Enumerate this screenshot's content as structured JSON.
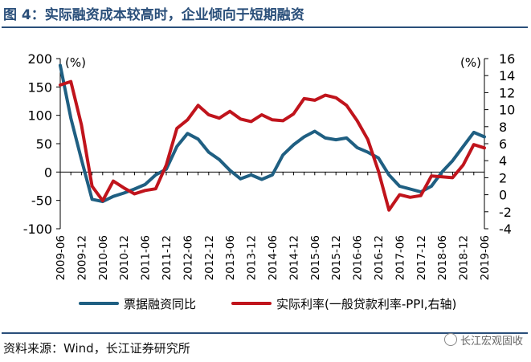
{
  "title": "图 4：实际融资成本较高时，企业倾向于短期融资",
  "source": "资料来源：Wind，长江证券研究所",
  "watermark": "长江宏观固收",
  "colors": {
    "title": "#2a4f7a",
    "series1": "#1f5f82",
    "series2": "#c0141c"
  },
  "chart_data": {
    "type": "line",
    "x": [
      "2009-06",
      "2009-09",
      "2009-12",
      "2010-03",
      "2010-06",
      "2010-09",
      "2010-12",
      "2011-03",
      "2011-06",
      "2011-09",
      "2011-12",
      "2012-03",
      "2012-06",
      "2012-09",
      "2012-12",
      "2013-03",
      "2013-06",
      "2013-09",
      "2013-12",
      "2014-03",
      "2014-06",
      "2014-09",
      "2014-12",
      "2015-03",
      "2015-06",
      "2015-09",
      "2015-12",
      "2016-03",
      "2016-06",
      "2016-09",
      "2016-12",
      "2017-03",
      "2017-06",
      "2017-09",
      "2017-12",
      "2018-03",
      "2018-06",
      "2018-09",
      "2018-12",
      "2019-03",
      "2019-06"
    ],
    "x_tick_labels": [
      "2009-06",
      "2009-12",
      "2010-06",
      "2010-12",
      "2011-06",
      "2011-12",
      "2012-06",
      "2012-12",
      "2013-06",
      "2013-12",
      "2014-06",
      "2014-12",
      "2015-06",
      "2015-12",
      "2016-06",
      "2016-12",
      "2017-06",
      "2017-12",
      "2018-06",
      "2018-12",
      "2019-06"
    ],
    "series": [
      {
        "name": "票据融资同比",
        "axis": "left",
        "values": [
          188,
          95,
          22,
          -48,
          -52,
          -43,
          -37,
          -30,
          -22,
          -5,
          5,
          45,
          68,
          58,
          35,
          22,
          3,
          -12,
          -5,
          -13,
          -5,
          30,
          48,
          62,
          72,
          60,
          57,
          60,
          43,
          35,
          25,
          -5,
          -25,
          -30,
          -35,
          -25,
          0,
          20,
          45,
          70,
          62
        ]
      },
      {
        "name": "实际利率(一般贷款利率-PPI,右轴)",
        "axis": "right",
        "values": [
          12.9,
          13.3,
          8.2,
          1.0,
          -0.7,
          1.6,
          0.8,
          0.1,
          0.5,
          0.7,
          3.5,
          7.8,
          8.8,
          10.5,
          9.4,
          9.0,
          9.8,
          8.9,
          8.6,
          9.4,
          8.8,
          8.7,
          9.5,
          11.3,
          11.1,
          11.7,
          11.4,
          10.5,
          8.7,
          6.5,
          2.8,
          -1.8,
          0.0,
          -0.3,
          -0.1,
          2.2,
          2.1,
          2.0,
          3.5,
          5.9,
          5.5
        ]
      }
    ],
    "y_left": {
      "label": "(%)",
      "ylim": [
        -100,
        200
      ],
      "ticks": [
        -100,
        -50,
        0,
        50,
        100,
        150,
        200
      ]
    },
    "y_right": {
      "label": "(%)",
      "ylim": [
        -4,
        16
      ],
      "ticks": [
        -4,
        -2,
        0,
        2,
        4,
        6,
        8,
        10,
        12,
        14,
        16
      ]
    },
    "grid": false,
    "legend_position": "bottom"
  }
}
